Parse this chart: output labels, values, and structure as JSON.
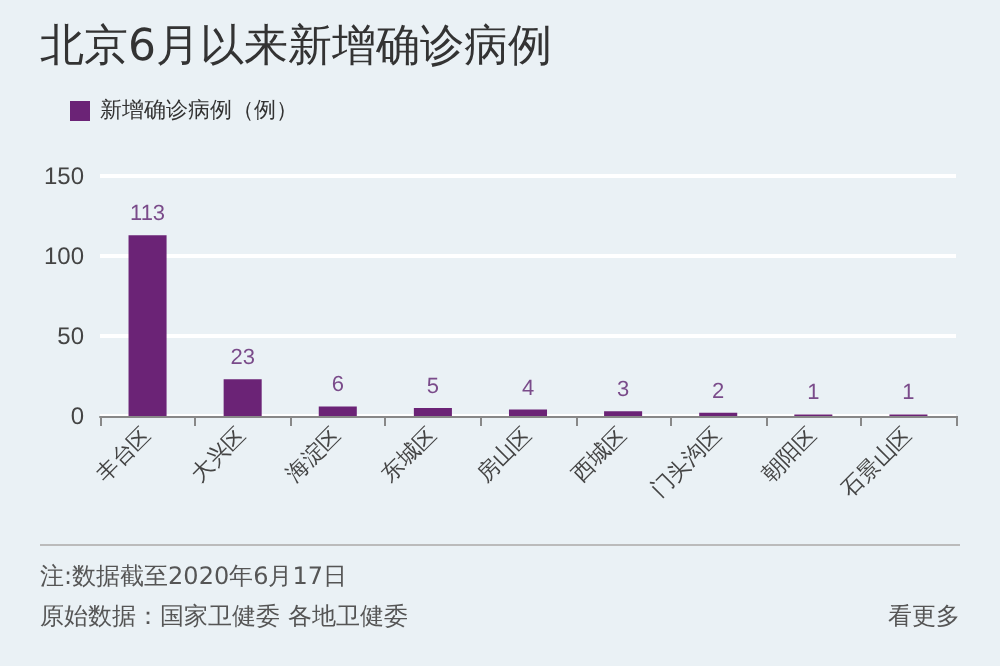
{
  "chart_data": {
    "type": "bar",
    "title": "北京6月以来新增确诊病例",
    "categories": [
      "丰台区",
      "大兴区",
      "海淀区",
      "东城区",
      "房山区",
      "西城区",
      "门头沟区",
      "朝阳区",
      "石景山区"
    ],
    "series": [
      {
        "name": "新增确诊病例（例）",
        "color": "#6b2376",
        "values": [
          113,
          23,
          6,
          5,
          4,
          3,
          2,
          1,
          1
        ]
      }
    ],
    "ylim": [
      0,
      150
    ],
    "yticks": [
      0,
      50,
      100,
      150
    ],
    "grid": "y",
    "legend": "top left",
    "data_labels": true,
    "annotations": [
      "注:数据截至2020年6月17日",
      "原始数据：国家卫健委 各地卫健委",
      "看更多"
    ]
  }
}
